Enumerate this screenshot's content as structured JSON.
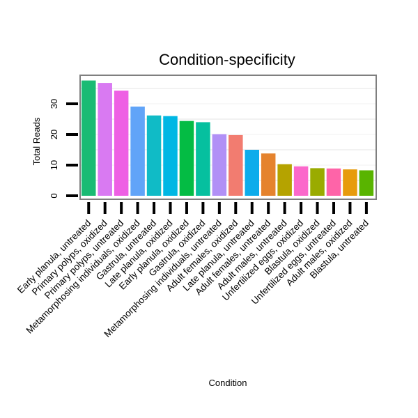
{
  "chart_data": {
    "type": "bar",
    "title": "Condition-specificity",
    "xlabel": "Condition",
    "ylabel": "Total Reads",
    "ylim": [
      0,
      39
    ],
    "yticks": [
      0,
      10,
      20,
      30
    ],
    "grid": true,
    "categories": [
      "Early planula, untreated",
      "Primary polyps, oxidized",
      "Primary polyps, untreated",
      "Metamorphosing individuals, oxidized",
      "Gastrula, untreated",
      "Late planula, oxidized",
      "Early planula, oxidized",
      "Gastrula, oxidized",
      "Metamorphosing individuals, untreated",
      "Adult females, oxidized",
      "Late planula, untreated",
      "Adult females, untreated",
      "Adult males, untreated",
      "Unfertilized eggs, oxidized",
      "Blastula, oxidized",
      "Unfertilized eggs, untreated",
      "Adult males, oxidized",
      "Blastula, untreated"
    ],
    "values": [
      37.6,
      36.8,
      34.3,
      29.1,
      26.2,
      26.0,
      24.4,
      24.0,
      20.1,
      19.8,
      15.0,
      13.8,
      10.3,
      9.6,
      9.0,
      8.9,
      8.6,
      8.3
    ],
    "colors": [
      "#1ABB74",
      "#D97AF2",
      "#EE60E4",
      "#61A4F8",
      "#10BBC6",
      "#00B7E4",
      "#04BC44",
      "#06C09F",
      "#B190F6",
      "#F27C70",
      "#0DACEB",
      "#E5832E",
      "#B5A300",
      "#FB68CB",
      "#9AAB00",
      "#FE64A8",
      "#E79B0C",
      "#59B400"
    ]
  }
}
